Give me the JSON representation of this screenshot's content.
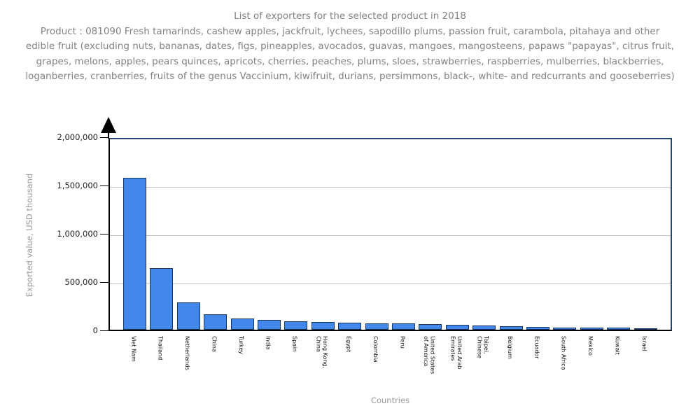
{
  "title": "List of exporters for the selected product in 2018",
  "subtitle": "Product : 081090 Fresh tamarinds, cashew apples, jackfruit, lychees, sapodillo plums, passion fruit, carambola, pitahaya and other edible fruit (excluding nuts, bananas, dates, figs, pineapples, avocados, guavas, mangoes, mangosteens, papaws \"papayas\", citrus fruit, grapes, melons, apples, pears quinces, apricots, cherries, peaches, plums, sloes, strawberries, raspberries, mulberries, blackberries, loganberries, cranberries, fruits of the genus Vaccinium, kiwifruit, durians, persimmons, black-, white- and redcurrants and gooseberries)",
  "chart_data": {
    "type": "bar",
    "title": "List of exporters for the selected product in 2018",
    "xlabel": "Countries",
    "ylabel": "Exported value, USD thousand",
    "ylim": [
      0,
      2000000
    ],
    "grid": true,
    "categories": [
      "Viet Nam",
      "Thailand",
      "Netherlands",
      "China",
      "Turkey",
      "India",
      "Spain",
      "Hong Kong, China",
      "Egypt",
      "Colombia",
      "Peru",
      "United States of America",
      "United Arab Emirates",
      "Taipei, Chinese",
      "Belgium",
      "Ecuador",
      "South Africa",
      "Mexico",
      "Kuwait",
      "Israel"
    ],
    "category_tick_labels": [
      "Viet Nam",
      "Thailand",
      "Netherlands",
      "China",
      "Turkey",
      "India",
      "Spain",
      "Hong Kong,\nChina",
      "Egypt",
      "Colombia",
      "Peru",
      "United States\nof America",
      "United Arab\nEmirates",
      "Taipei,\nChinese",
      "Belgium",
      "Ecuador",
      "South Africa",
      "Mexico",
      "Kuwait",
      "Israel"
    ],
    "values": [
      1570000,
      640000,
      280000,
      160000,
      114000,
      100000,
      85000,
      78000,
      75000,
      68000,
      62000,
      55000,
      48000,
      42000,
      37000,
      31000,
      25000,
      21000,
      20000,
      17000
    ],
    "yticks": [
      {
        "value": 0,
        "label": "0"
      },
      {
        "value": 500000,
        "label": "500,000"
      },
      {
        "value": 1000000,
        "label": "1,000,000"
      },
      {
        "value": 1500000,
        "label": "1,500,000"
      },
      {
        "value": 2000000,
        "label": "2,000,000"
      }
    ],
    "colors": {
      "bar_fill": "#4287ec",
      "bar_border": "#17375e",
      "frame": "#24466e",
      "axis": "#000000",
      "gridline": "#c4c4c4",
      "title_text": "#828282",
      "axis_title_text": "#9a9a9a",
      "tick_text": "#222222"
    }
  }
}
